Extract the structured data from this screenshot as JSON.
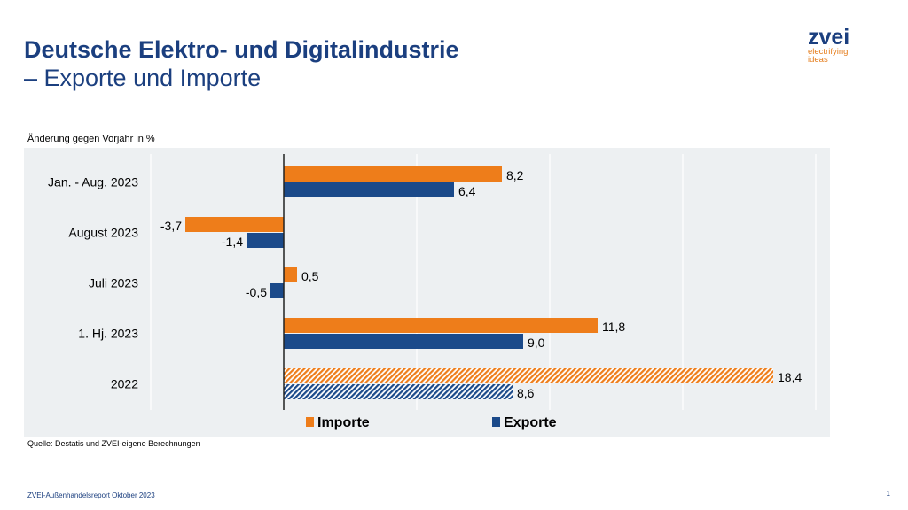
{
  "header": {
    "title_line1": "Deutsche Elektro- und Digitalindustrie",
    "title_line2": "– Exporte und Importe"
  },
  "logo": {
    "name": "zvei",
    "tagline1": "electrifying",
    "tagline2": "ideas"
  },
  "footer": {
    "source": "Quelle: Destatis und ZVEI-eigene Berechnungen",
    "report": "ZVEI-Außenhandelsreport Oktober 2023",
    "page": "1"
  },
  "chart_data": {
    "type": "bar",
    "orientation": "horizontal",
    "subtitle": "Änderung gegen Vorjahr in %",
    "categories": [
      "Jan. - Aug. 2023",
      "August 2023",
      "Juli 2023",
      "1. Hj. 2023",
      "2022"
    ],
    "series": [
      {
        "name": "Importe",
        "color": "#ee7d1a",
        "values": [
          8.2,
          -3.7,
          0.5,
          11.8,
          18.4
        ],
        "labels": [
          "8,2",
          "-3,7",
          "0,5",
          "11,8",
          "18,4"
        ]
      },
      {
        "name": "Exporte",
        "color": "#1b4a8a",
        "values": [
          6.4,
          -1.4,
          -0.5,
          9.0,
          8.6
        ],
        "labels": [
          "6,4",
          "-1,4",
          "-0,5",
          "9,0",
          "8,6"
        ]
      }
    ],
    "hatched_categories": [
      "2022"
    ],
    "xlim": [
      -5,
      20
    ],
    "grid": true,
    "legend": "bottom",
    "background": "#edf0f2"
  }
}
